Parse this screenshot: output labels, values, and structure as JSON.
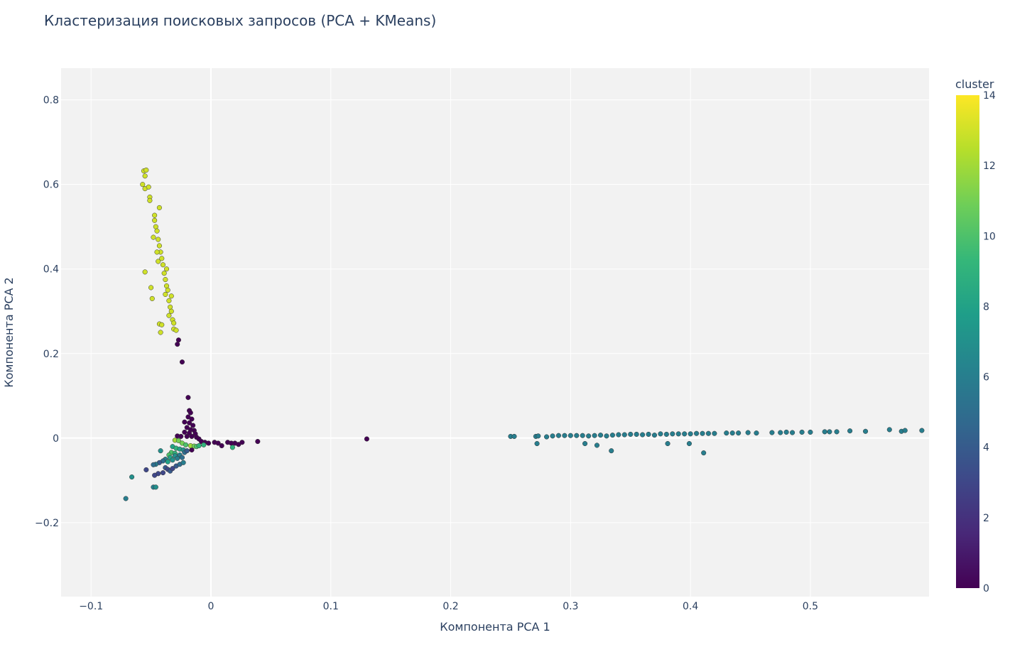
{
  "chart_data": {
    "type": "scatter",
    "title": "Кластеризация поисковых запросов (PCA + KMeans)",
    "xlabel": "Компонента PCA 1",
    "ylabel": "Компонента PCA 2",
    "xlim": [
      -0.125,
      0.599
    ],
    "ylim": [
      -0.375,
      0.875
    ],
    "x_ticks": [
      -0.1,
      0,
      0.1,
      0.2,
      0.3,
      0.4,
      0.5
    ],
    "x_tick_labels": [
      "−0.1",
      "0",
      "0.1",
      "0.2",
      "0.3",
      "0.4",
      "0.5"
    ],
    "y_ticks": [
      -0.2,
      0,
      0.2,
      0.4,
      0.6,
      0.8
    ],
    "y_tick_labels": [
      "−0.2",
      "0",
      "0.2",
      "0.4",
      "0.6",
      "0.8"
    ],
    "grid": true,
    "colorbar": {
      "title": "cluster",
      "min": 0,
      "max": 14,
      "ticks": [
        0,
        2,
        4,
        6,
        8,
        10,
        12,
        14
      ],
      "tick_labels": [
        "0",
        "2",
        "4",
        "6",
        "8",
        "10",
        "12",
        "14"
      ],
      "colorscale": "Viridis",
      "position": "right"
    },
    "points": [
      {
        "x": -0.056,
        "y": 0.632,
        "cluster": 13
      },
      {
        "x": -0.054,
        "y": 0.634,
        "cluster": 13
      },
      {
        "x": -0.055,
        "y": 0.62,
        "cluster": 13
      },
      {
        "x": -0.057,
        "y": 0.6,
        "cluster": 13
      },
      {
        "x": -0.055,
        "y": 0.59,
        "cluster": 13
      },
      {
        "x": -0.052,
        "y": 0.594,
        "cluster": 13
      },
      {
        "x": -0.051,
        "y": 0.57,
        "cluster": 13
      },
      {
        "x": -0.051,
        "y": 0.562,
        "cluster": 13
      },
      {
        "x": -0.043,
        "y": 0.545,
        "cluster": 13
      },
      {
        "x": -0.047,
        "y": 0.527,
        "cluster": 13
      },
      {
        "x": -0.047,
        "y": 0.515,
        "cluster": 13
      },
      {
        "x": -0.046,
        "y": 0.5,
        "cluster": 13
      },
      {
        "x": -0.045,
        "y": 0.49,
        "cluster": 13
      },
      {
        "x": -0.048,
        "y": 0.475,
        "cluster": 13
      },
      {
        "x": -0.044,
        "y": 0.47,
        "cluster": 13
      },
      {
        "x": -0.043,
        "y": 0.455,
        "cluster": 13
      },
      {
        "x": -0.042,
        "y": 0.44,
        "cluster": 13
      },
      {
        "x": -0.045,
        "y": 0.44,
        "cluster": 13
      },
      {
        "x": -0.041,
        "y": 0.425,
        "cluster": 13
      },
      {
        "x": -0.044,
        "y": 0.418,
        "cluster": 13
      },
      {
        "x": -0.04,
        "y": 0.41,
        "cluster": 13
      },
      {
        "x": -0.037,
        "y": 0.4,
        "cluster": 13
      },
      {
        "x": -0.055,
        "y": 0.393,
        "cluster": 13
      },
      {
        "x": -0.039,
        "y": 0.39,
        "cluster": 13
      },
      {
        "x": -0.038,
        "y": 0.375,
        "cluster": 13
      },
      {
        "x": -0.037,
        "y": 0.36,
        "cluster": 13
      },
      {
        "x": -0.05,
        "y": 0.356,
        "cluster": 13
      },
      {
        "x": -0.036,
        "y": 0.35,
        "cluster": 13
      },
      {
        "x": -0.038,
        "y": 0.34,
        "cluster": 13
      },
      {
        "x": -0.033,
        "y": 0.336,
        "cluster": 13
      },
      {
        "x": -0.049,
        "y": 0.33,
        "cluster": 13
      },
      {
        "x": -0.035,
        "y": 0.325,
        "cluster": 13
      },
      {
        "x": -0.034,
        "y": 0.31,
        "cluster": 13
      },
      {
        "x": -0.033,
        "y": 0.3,
        "cluster": 13
      },
      {
        "x": -0.035,
        "y": 0.29,
        "cluster": 13
      },
      {
        "x": -0.032,
        "y": 0.28,
        "cluster": 13
      },
      {
        "x": -0.031,
        "y": 0.272,
        "cluster": 13
      },
      {
        "x": -0.043,
        "y": 0.27,
        "cluster": 13
      },
      {
        "x": -0.041,
        "y": 0.268,
        "cluster": 13
      },
      {
        "x": -0.031,
        "y": 0.258,
        "cluster": 13
      },
      {
        "x": -0.029,
        "y": 0.255,
        "cluster": 13
      },
      {
        "x": -0.042,
        "y": 0.25,
        "cluster": 13
      },
      {
        "x": -0.027,
        "y": 0.232,
        "cluster": 0
      },
      {
        "x": -0.028,
        "y": 0.222,
        "cluster": 0
      },
      {
        "x": -0.024,
        "y": 0.18,
        "cluster": 0
      },
      {
        "x": -0.019,
        "y": 0.096,
        "cluster": 0
      },
      {
        "x": -0.018,
        "y": 0.065,
        "cluster": 0
      },
      {
        "x": -0.017,
        "y": 0.06,
        "cluster": 0
      },
      {
        "x": -0.019,
        "y": 0.05,
        "cluster": 0
      },
      {
        "x": -0.016,
        "y": 0.045,
        "cluster": 0
      },
      {
        "x": -0.022,
        "y": 0.038,
        "cluster": 0
      },
      {
        "x": -0.018,
        "y": 0.036,
        "cluster": 0
      },
      {
        "x": -0.015,
        "y": 0.03,
        "cluster": 0
      },
      {
        "x": -0.02,
        "y": 0.025,
        "cluster": 0
      },
      {
        "x": -0.017,
        "y": 0.02,
        "cluster": 0
      },
      {
        "x": -0.014,
        "y": 0.018,
        "cluster": 0
      },
      {
        "x": -0.022,
        "y": 0.014,
        "cluster": 0
      },
      {
        "x": -0.018,
        "y": 0.012,
        "cluster": 0
      },
      {
        "x": -0.013,
        "y": 0.01,
        "cluster": 0
      },
      {
        "x": -0.028,
        "y": 0.005,
        "cluster": 0
      },
      {
        "x": -0.025,
        "y": 0.004,
        "cluster": 0
      },
      {
        "x": -0.02,
        "y": 0.004,
        "cluster": 0
      },
      {
        "x": -0.016,
        "y": 0.004,
        "cluster": 0
      },
      {
        "x": -0.012,
        "y": 0.002,
        "cluster": 0
      },
      {
        "x": -0.01,
        "y": -0.002,
        "cluster": 0
      },
      {
        "x": -0.008,
        "y": -0.008,
        "cluster": 0
      },
      {
        "x": -0.005,
        "y": -0.01,
        "cluster": 0
      },
      {
        "x": -0.002,
        "y": -0.012,
        "cluster": 0
      },
      {
        "x": 0.003,
        "y": -0.01,
        "cluster": 0
      },
      {
        "x": 0.006,
        "y": -0.012,
        "cluster": 0
      },
      {
        "x": 0.009,
        "y": -0.018,
        "cluster": 0
      },
      {
        "x": 0.014,
        "y": -0.01,
        "cluster": 0
      },
      {
        "x": 0.017,
        "y": -0.012,
        "cluster": 0
      },
      {
        "x": 0.02,
        "y": -0.012,
        "cluster": 0
      },
      {
        "x": 0.023,
        "y": -0.015,
        "cluster": 0
      },
      {
        "x": 0.026,
        "y": -0.01,
        "cluster": 0
      },
      {
        "x": 0.039,
        "y": -0.008,
        "cluster": 0
      },
      {
        "x": 0.13,
        "y": -0.002,
        "cluster": 0
      },
      {
        "x": -0.016,
        "y": -0.028,
        "cluster": 0
      },
      {
        "x": -0.03,
        "y": -0.005,
        "cluster": 12
      },
      {
        "x": -0.027,
        "y": -0.006,
        "cluster": 11
      },
      {
        "x": -0.024,
        "y": -0.012,
        "cluster": 11
      },
      {
        "x": -0.021,
        "y": -0.016,
        "cluster": 10
      },
      {
        "x": -0.017,
        "y": -0.018,
        "cluster": 12
      },
      {
        "x": -0.014,
        "y": -0.019,
        "cluster": 11
      },
      {
        "x": -0.012,
        "y": -0.02,
        "cluster": 10
      },
      {
        "x": -0.01,
        "y": -0.018,
        "cluster": 9
      },
      {
        "x": -0.006,
        "y": -0.016,
        "cluster": 9
      },
      {
        "x": 0.018,
        "y": -0.022,
        "cluster": 9
      },
      {
        "x": -0.032,
        "y": -0.02,
        "cluster": 8
      },
      {
        "x": -0.029,
        "y": -0.024,
        "cluster": 9
      },
      {
        "x": -0.026,
        "y": -0.026,
        "cluster": 8
      },
      {
        "x": -0.023,
        "y": -0.028,
        "cluster": 7
      },
      {
        "x": -0.033,
        "y": -0.034,
        "cluster": 10
      },
      {
        "x": -0.03,
        "y": -0.036,
        "cluster": 9
      },
      {
        "x": -0.035,
        "y": -0.04,
        "cluster": 10
      },
      {
        "x": -0.034,
        "y": -0.046,
        "cluster": 8
      },
      {
        "x": -0.03,
        "y": -0.042,
        "cluster": 7
      },
      {
        "x": -0.026,
        "y": -0.04,
        "cluster": 6
      },
      {
        "x": -0.022,
        "y": -0.034,
        "cluster": 5
      },
      {
        "x": -0.02,
        "y": -0.03,
        "cluster": 4
      },
      {
        "x": -0.038,
        "y": -0.05,
        "cluster": 6
      },
      {
        "x": -0.04,
        "y": -0.054,
        "cluster": 5
      },
      {
        "x": -0.043,
        "y": -0.058,
        "cluster": 4
      },
      {
        "x": -0.046,
        "y": -0.062,
        "cluster": 6
      },
      {
        "x": -0.048,
        "y": -0.063,
        "cluster": 5
      },
      {
        "x": -0.036,
        "y": -0.056,
        "cluster": 8
      },
      {
        "x": -0.032,
        "y": -0.052,
        "cluster": 7
      },
      {
        "x": -0.028,
        "y": -0.048,
        "cluster": 6
      },
      {
        "x": -0.024,
        "y": -0.046,
        "cluster": 5
      },
      {
        "x": -0.038,
        "y": -0.07,
        "cluster": 4
      },
      {
        "x": -0.036,
        "y": -0.074,
        "cluster": 3
      },
      {
        "x": -0.034,
        "y": -0.078,
        "cluster": 4
      },
      {
        "x": -0.032,
        "y": -0.072,
        "cluster": 3
      },
      {
        "x": -0.029,
        "y": -0.066,
        "cluster": 4
      },
      {
        "x": -0.026,
        "y": -0.062,
        "cluster": 5
      },
      {
        "x": -0.023,
        "y": -0.058,
        "cluster": 6
      },
      {
        "x": -0.04,
        "y": -0.082,
        "cluster": 3
      },
      {
        "x": -0.044,
        "y": -0.084,
        "cluster": 3
      },
      {
        "x": -0.047,
        "y": -0.088,
        "cluster": 3
      },
      {
        "x": -0.054,
        "y": -0.075,
        "cluster": 3
      },
      {
        "x": -0.066,
        "y": -0.092,
        "cluster": 7
      },
      {
        "x": -0.048,
        "y": -0.116,
        "cluster": 6
      },
      {
        "x": -0.046,
        "y": -0.116,
        "cluster": 7
      },
      {
        "x": -0.071,
        "y": -0.143,
        "cluster": 6
      },
      {
        "x": -0.042,
        "y": -0.03,
        "cluster": 7
      },
      {
        "x": 0.25,
        "y": 0.004,
        "cluster": 6
      },
      {
        "x": 0.253,
        "y": 0.004,
        "cluster": 6
      },
      {
        "x": 0.271,
        "y": 0.004,
        "cluster": 6
      },
      {
        "x": 0.273,
        "y": 0.005,
        "cluster": 6
      },
      {
        "x": 0.28,
        "y": 0.003,
        "cluster": 6
      },
      {
        "x": 0.285,
        "y": 0.005,
        "cluster": 6
      },
      {
        "x": 0.29,
        "y": 0.006,
        "cluster": 6
      },
      {
        "x": 0.295,
        "y": 0.006,
        "cluster": 6
      },
      {
        "x": 0.3,
        "y": 0.006,
        "cluster": 6
      },
      {
        "x": 0.305,
        "y": 0.006,
        "cluster": 6
      },
      {
        "x": 0.31,
        "y": 0.006,
        "cluster": 6
      },
      {
        "x": 0.315,
        "y": 0.005,
        "cluster": 6
      },
      {
        "x": 0.32,
        "y": 0.006,
        "cluster": 6
      },
      {
        "x": 0.325,
        "y": 0.007,
        "cluster": 6
      },
      {
        "x": 0.33,
        "y": 0.005,
        "cluster": 6
      },
      {
        "x": 0.335,
        "y": 0.007,
        "cluster": 6
      },
      {
        "x": 0.34,
        "y": 0.008,
        "cluster": 6
      },
      {
        "x": 0.345,
        "y": 0.008,
        "cluster": 6
      },
      {
        "x": 0.35,
        "y": 0.009,
        "cluster": 6
      },
      {
        "x": 0.355,
        "y": 0.009,
        "cluster": 6
      },
      {
        "x": 0.36,
        "y": 0.008,
        "cluster": 6
      },
      {
        "x": 0.365,
        "y": 0.009,
        "cluster": 6
      },
      {
        "x": 0.37,
        "y": 0.007,
        "cluster": 6
      },
      {
        "x": 0.375,
        "y": 0.01,
        "cluster": 6
      },
      {
        "x": 0.38,
        "y": 0.009,
        "cluster": 6
      },
      {
        "x": 0.385,
        "y": 0.01,
        "cluster": 6
      },
      {
        "x": 0.39,
        "y": 0.01,
        "cluster": 6
      },
      {
        "x": 0.395,
        "y": 0.01,
        "cluster": 6
      },
      {
        "x": 0.4,
        "y": 0.01,
        "cluster": 6
      },
      {
        "x": 0.405,
        "y": 0.011,
        "cluster": 6
      },
      {
        "x": 0.41,
        "y": 0.011,
        "cluster": 6
      },
      {
        "x": 0.415,
        "y": 0.011,
        "cluster": 6
      },
      {
        "x": 0.42,
        "y": 0.011,
        "cluster": 6
      },
      {
        "x": 0.43,
        "y": 0.012,
        "cluster": 6
      },
      {
        "x": 0.435,
        "y": 0.012,
        "cluster": 6
      },
      {
        "x": 0.44,
        "y": 0.012,
        "cluster": 6
      },
      {
        "x": 0.448,
        "y": 0.013,
        "cluster": 6
      },
      {
        "x": 0.455,
        "y": 0.012,
        "cluster": 6
      },
      {
        "x": 0.468,
        "y": 0.013,
        "cluster": 6
      },
      {
        "x": 0.475,
        "y": 0.013,
        "cluster": 6
      },
      {
        "x": 0.48,
        "y": 0.014,
        "cluster": 6
      },
      {
        "x": 0.485,
        "y": 0.013,
        "cluster": 6
      },
      {
        "x": 0.493,
        "y": 0.014,
        "cluster": 6
      },
      {
        "x": 0.5,
        "y": 0.014,
        "cluster": 6
      },
      {
        "x": 0.512,
        "y": 0.015,
        "cluster": 6
      },
      {
        "x": 0.516,
        "y": 0.015,
        "cluster": 6
      },
      {
        "x": 0.522,
        "y": 0.015,
        "cluster": 6
      },
      {
        "x": 0.533,
        "y": 0.017,
        "cluster": 6
      },
      {
        "x": 0.546,
        "y": 0.016,
        "cluster": 6
      },
      {
        "x": 0.566,
        "y": 0.02,
        "cluster": 6
      },
      {
        "x": 0.576,
        "y": 0.016,
        "cluster": 6
      },
      {
        "x": 0.579,
        "y": 0.018,
        "cluster": 6
      },
      {
        "x": 0.593,
        "y": 0.018,
        "cluster": 6
      },
      {
        "x": 0.272,
        "y": -0.013,
        "cluster": 6
      },
      {
        "x": 0.312,
        "y": -0.013,
        "cluster": 6
      },
      {
        "x": 0.322,
        "y": -0.017,
        "cluster": 6
      },
      {
        "x": 0.334,
        "y": -0.03,
        "cluster": 6
      },
      {
        "x": 0.381,
        "y": -0.013,
        "cluster": 6
      },
      {
        "x": 0.399,
        "y": -0.013,
        "cluster": 6
      },
      {
        "x": 0.411,
        "y": -0.035,
        "cluster": 6
      }
    ]
  }
}
